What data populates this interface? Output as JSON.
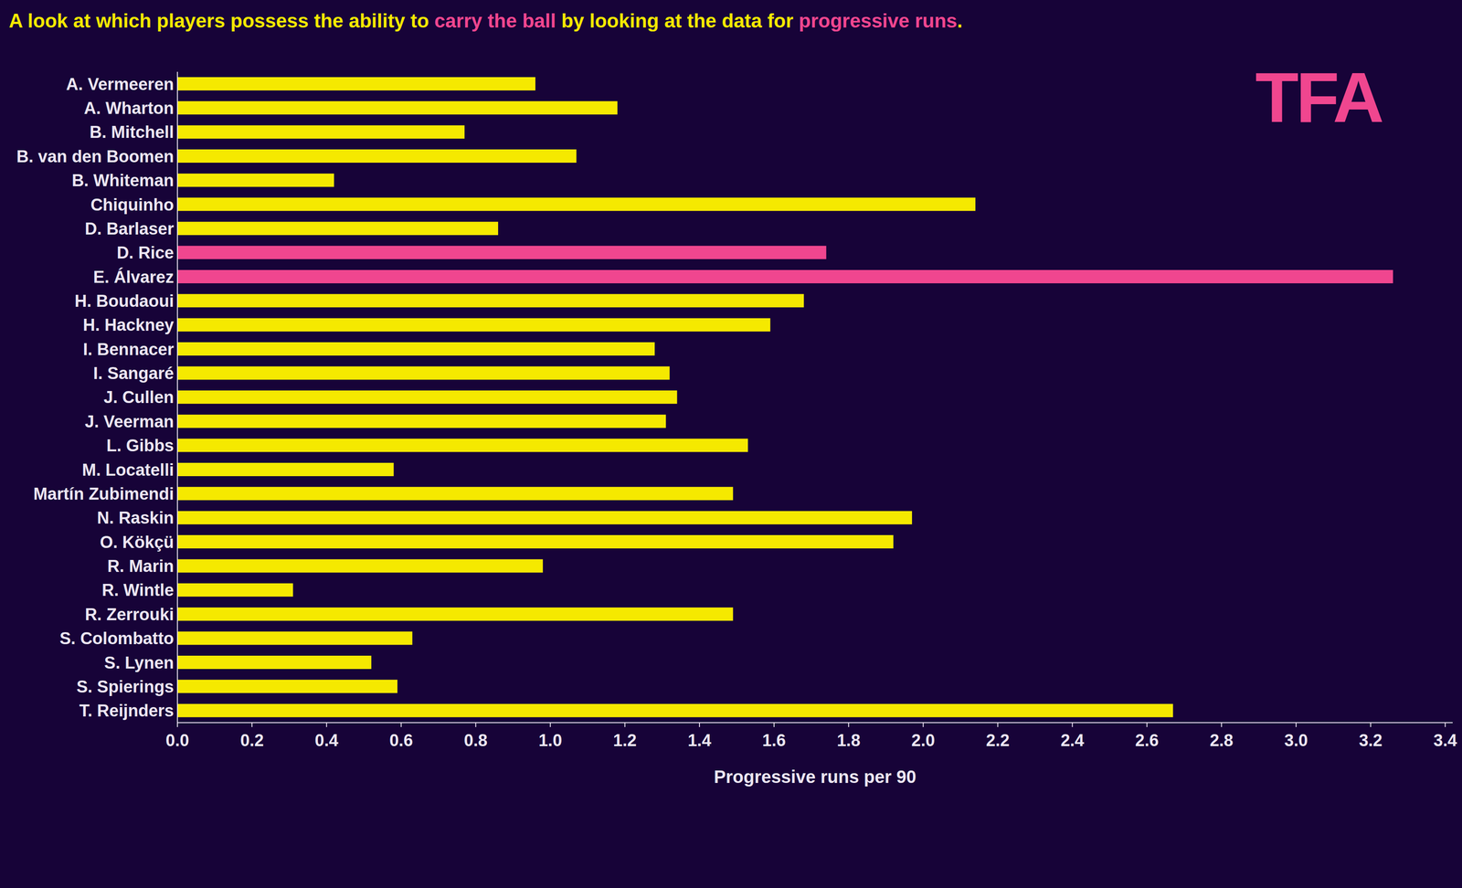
{
  "chart_data": {
    "type": "bar",
    "orientation": "horizontal",
    "title": "A look at which players possess the ability to carry the ball by looking at the data for progressive runs.",
    "title_highlights": [
      "carry the ball",
      "progressive runs"
    ],
    "title_color": "#f5e900",
    "highlight_color": "#f0468f",
    "annotations": [
      "TFA"
    ],
    "xlabel": "Progressive runs per 90",
    "categories": [
      "A. Vermeeren",
      "A. Wharton",
      "B. Mitchell",
      "B. van den Boomen",
      "B. Whiteman",
      "Chiquinho",
      "D. Barlaser",
      "D. Rice",
      "E. Álvarez",
      "H. Boudaoui",
      "H. Hackney",
      "I. Bennacer",
      "I. Sangaré",
      "J. Cullen",
      "J. Veerman",
      "L. Gibbs",
      "M. Locatelli",
      "Martín Zubimendi",
      "N. Raskin",
      "O. Kökçü",
      "R. Marin",
      "R. Wintle",
      "R. Zerrouki",
      "S. Colombatto",
      "S. Lynen",
      "S. Spierings",
      "T. Reijnders"
    ],
    "values": [
      0.96,
      1.18,
      0.77,
      1.07,
      0.42,
      2.14,
      0.86,
      1.74,
      3.26,
      1.68,
      1.59,
      1.28,
      1.32,
      1.34,
      1.31,
      1.53,
      0.58,
      1.49,
      1.97,
      1.92,
      0.98,
      0.31,
      1.49,
      0.63,
      0.52,
      0.59,
      2.67
    ],
    "colors": [
      "#f5e900",
      "#f5e900",
      "#f5e900",
      "#f5e900",
      "#f5e900",
      "#f5e900",
      "#f5e900",
      "#f0468f",
      "#f0468f",
      "#f5e900",
      "#f5e900",
      "#f5e900",
      "#f5e900",
      "#f5e900",
      "#f5e900",
      "#f5e900",
      "#f5e900",
      "#f5e900",
      "#f5e900",
      "#f5e900",
      "#f5e900",
      "#f5e900",
      "#f5e900",
      "#f5e900",
      "#f5e900",
      "#f5e900",
      "#f5e900"
    ],
    "xlim": [
      0,
      3.42
    ],
    "xticks": [
      {
        "value": 0,
        "label": "0.0"
      },
      0.2,
      0.4,
      0.6,
      0.8,
      {
        "value": 1,
        "label": "1.0"
      },
      1.2,
      1.4,
      1.6,
      1.8,
      {
        "value": 2,
        "label": "2.0"
      },
      2.2,
      2.4,
      2.6,
      2.8,
      {
        "value": 3,
        "label": "3.0"
      },
      3.2,
      3.4
    ],
    "grid": false
  }
}
